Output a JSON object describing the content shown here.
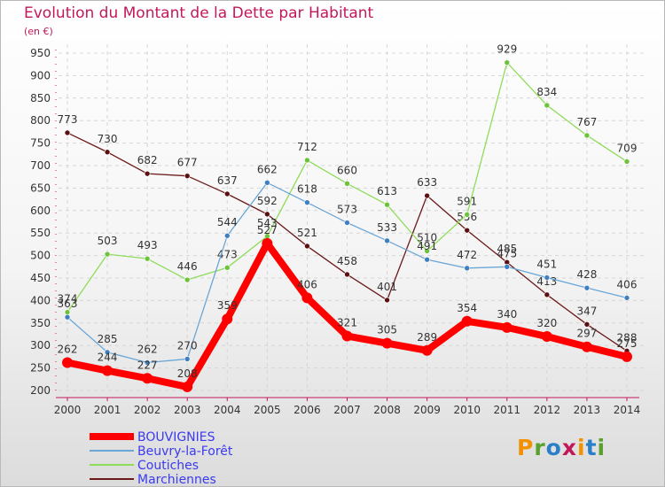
{
  "header": {
    "title": "Evolution du Montant de la Dette par Habitant",
    "subtitle": "(en €)"
  },
  "logo": {
    "text": "Proxiti",
    "colors": [
      "#f39200",
      "#5aa02c",
      "#2a7fc9",
      "#c2185b",
      "#f39200",
      "#2a7fc9",
      "#5aa02c"
    ]
  },
  "chart_data": {
    "type": "line",
    "title": "Evolution du Montant de la Dette par Habitant",
    "ylabel": "(en €)",
    "xlabel": "",
    "ylim": [
      200,
      950
    ],
    "yticks": [
      200,
      250,
      300,
      350,
      400,
      450,
      500,
      550,
      600,
      650,
      700,
      750,
      800,
      850,
      900,
      950
    ],
    "x": [
      "2000",
      "2001",
      "2002",
      "2003",
      "2004",
      "2005",
      "2006",
      "2007",
      "2008",
      "2009",
      "2010",
      "2011",
      "2012",
      "2013",
      "2014"
    ],
    "grid": true,
    "legend": "bottom-left",
    "series": [
      {
        "name": "Marchiennes",
        "color": "#6b1a1a",
        "marker": "#5a1010",
        "width": 1.3,
        "radius": 3,
        "values": [
          773,
          730,
          682,
          677,
          637,
          592,
          521,
          458,
          401,
          633,
          556,
          485,
          413,
          347,
          288
        ]
      },
      {
        "name": "Coutiches",
        "color": "#8fdc5a",
        "marker": "#6cc23a",
        "width": 1.3,
        "radius": 3,
        "values": [
          374,
          503,
          493,
          446,
          473,
          543,
          712,
          660,
          613,
          510,
          591,
          929,
          834,
          767,
          709
        ]
      },
      {
        "name": "Beuvry-la-Forêt",
        "color": "#6aa6d6",
        "marker": "#3f7fc0",
        "width": 1.3,
        "radius": 3,
        "values": [
          363,
          285,
          262,
          270,
          544,
          662,
          618,
          573,
          533,
          491,
          472,
          475,
          451,
          428,
          406
        ]
      },
      {
        "name": "BOUVIGNIES",
        "color": "#ff0000",
        "marker": "#ff0000",
        "width": 8,
        "radius": 6,
        "values": [
          262,
          244,
          227,
          208,
          359,
          527,
          406,
          321,
          305,
          289,
          354,
          340,
          320,
          297,
          275
        ]
      }
    ],
    "legend_order": [
      "BOUVIGNIES",
      "Beuvry-la-Forêt",
      "Coutiches",
      "Marchiennes"
    ],
    "legend_text_colors": [
      "#3a3af0",
      "#3a3af0",
      "#3a3af0",
      "#3a3af0"
    ]
  }
}
